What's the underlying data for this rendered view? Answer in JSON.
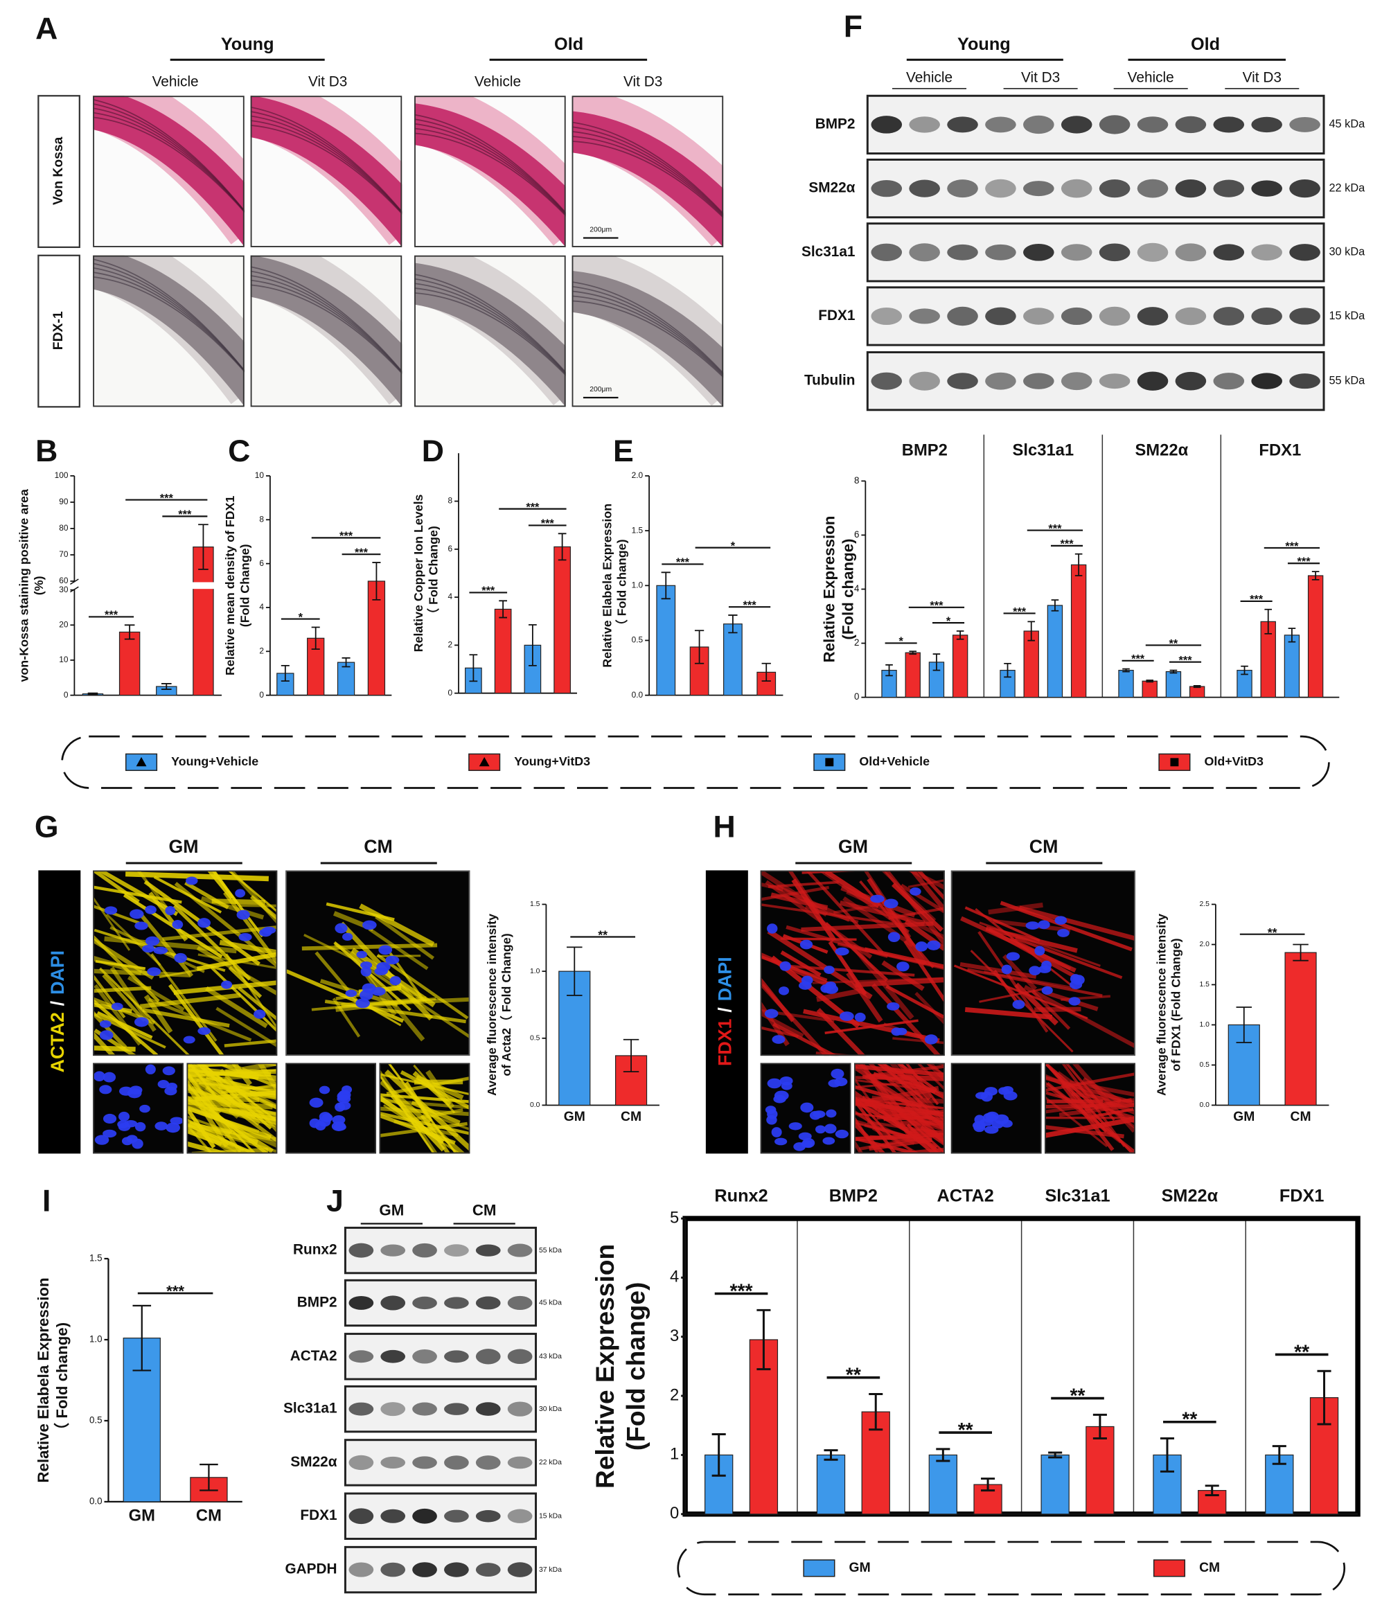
{
  "panel_letters": [
    "A",
    "B",
    "C",
    "D",
    "E",
    "F",
    "G",
    "H",
    "I",
    "J"
  ],
  "panel_A": {
    "groups": [
      "Young",
      "Old"
    ],
    "conditions": [
      "Vehicle",
      "Vit D3",
      "Vehicle",
      "Vit D3"
    ],
    "rows": [
      "Von Kossa",
      "FDX-1"
    ],
    "scale_bar": "200μm"
  },
  "panel_F": {
    "groups": [
      "Young",
      "Old"
    ],
    "conditions": [
      "Vehicle",
      "Vit D3",
      "Vehicle",
      "Vit D3"
    ],
    "blots": [
      {
        "protein": "BMP2",
        "size": "45 kDa"
      },
      {
        "protein": "SM22α",
        "size": "22 kDa"
      },
      {
        "protein": "Slc31a1",
        "size": "30 kDa"
      },
      {
        "protein": "FDX1",
        "size": "15 kDa"
      },
      {
        "protein": "Tubulin",
        "size": "55 kDa"
      }
    ]
  },
  "panel_G": {
    "conditions": [
      "GM",
      "CM"
    ],
    "stain": [
      "ACTA2",
      "/",
      "DAPI"
    ]
  },
  "panel_H": {
    "conditions": [
      "GM",
      "CM"
    ],
    "stain": [
      "FDX1",
      "/",
      "DAPI"
    ]
  },
  "panel_J": {
    "conditions": [
      "GM",
      "CM"
    ],
    "blots": [
      {
        "protein": "Runx2",
        "size": "55 kDa"
      },
      {
        "protein": "BMP2",
        "size": "45 kDa"
      },
      {
        "protein": "ACTA2",
        "size": "43 kDa"
      },
      {
        "protein": "Slc31a1",
        "size": "30 kDa"
      },
      {
        "protein": "SM22α",
        "size": "22 kDa"
      },
      {
        "protein": "FDX1",
        "size": "15 kDa"
      },
      {
        "protein": "GAPDH",
        "size": "37 kDa"
      }
    ]
  },
  "chart_data": [
    {
      "type": "bar",
      "ylabel": [
        "von-Kossa staining positive area",
        "(%)"
      ],
      "values": [
        0.4,
        18,
        2.5,
        73
      ],
      "errors": [
        0.2,
        2,
        0.8,
        8.5
      ],
      "colors": [
        "#3d98ea",
        "#ee2b2b",
        "#3d98ea",
        "#ee2b2b"
      ],
      "ylim": [
        0,
        100
      ],
      "ybreak": [
        30,
        60
      ],
      "yticks": [
        0,
        10,
        20,
        30,
        60,
        70,
        80,
        90,
        100
      ],
      "comparisons": [
        {
          "between": [
            0,
            1
          ],
          "label": "***"
        },
        {
          "between": [
            2,
            3
          ],
          "label": "***"
        },
        {
          "between": [
            1,
            3
          ],
          "label": "***"
        }
      ]
    },
    {
      "type": "bar",
      "ylabel": [
        "Relative mean density of FDX1",
        "(Fold Change)"
      ],
      "values": [
        1.0,
        2.6,
        1.5,
        5.2
      ],
      "errors": [
        0.35,
        0.5,
        0.2,
        0.85
      ],
      "colors": [
        "#3d98ea",
        "#ee2b2b",
        "#3d98ea",
        "#ee2b2b"
      ],
      "ylim": [
        0,
        10
      ],
      "yticks": [
        0,
        2,
        4,
        6,
        8,
        10
      ],
      "comparisons": [
        {
          "between": [
            0,
            1
          ],
          "label": "*"
        },
        {
          "between": [
            2,
            3
          ],
          "label": "***"
        },
        {
          "between": [
            1,
            3
          ],
          "label": "***"
        }
      ]
    },
    {
      "type": "bar",
      "ylabel": [
        "Relative Copper Ion Levels",
        "（ Fold Change)"
      ],
      "values": [
        1.05,
        3.5,
        2.0,
        6.1
      ],
      "errors": [
        0.55,
        0.35,
        0.85,
        0.55
      ],
      "colors": [
        "#3d98ea",
        "#ee2b2b",
        "#3d98ea",
        "#ee2b2b"
      ],
      "ylim": [
        0,
        10
      ],
      "yticks": [
        0,
        2,
        4,
        6,
        8
      ],
      "comparisons": [
        {
          "between": [
            0,
            1
          ],
          "label": "***"
        },
        {
          "between": [
            2,
            3
          ],
          "label": "***"
        },
        {
          "between": [
            1,
            3
          ],
          "label": "***"
        }
      ]
    },
    {
      "type": "bar",
      "ylabel": [
        "Relative  Elabela Expression",
        "（ Fold change)"
      ],
      "values": [
        1.0,
        0.44,
        0.65,
        0.21
      ],
      "errors": [
        0.12,
        0.15,
        0.08,
        0.08
      ],
      "colors": [
        "#3d98ea",
        "#ee2b2b",
        "#3d98ea",
        "#ee2b2b"
      ],
      "ylim": [
        0,
        2
      ],
      "yticks": [
        {
          "value": 0,
          "label": "0.0"
        },
        0.5,
        {
          "value": 1,
          "label": "1.0"
        },
        1.5,
        {
          "value": 2,
          "label": "2.0"
        }
      ],
      "comparisons": [
        {
          "between": [
            0,
            1
          ],
          "label": "***"
        },
        {
          "between": [
            2,
            3
          ],
          "label": "***"
        },
        {
          "between": [
            1,
            3
          ],
          "label": "*"
        }
      ]
    },
    {
      "type": "bar",
      "ylabel": [
        "Relative  Expression",
        "(Fold change)"
      ],
      "categories": [
        "BMP2",
        "Slc31a1",
        "SM22α",
        "FDX1"
      ],
      "dividers": true,
      "series": [
        {
          "name": "Young+Vehicle",
          "color": "#3d98ea",
          "marker": "triangle",
          "values": [
            1.0,
            1.0,
            1.0,
            1.0
          ],
          "errors": [
            0.2,
            0.25,
            0.05,
            0.15
          ]
        },
        {
          "name": "Young+VitD3",
          "color": "#ee2b2b",
          "marker": "triangle",
          "values": [
            1.65,
            2.45,
            0.6,
            2.8
          ],
          "errors": [
            0.05,
            0.35,
            0.03,
            0.45
          ]
        },
        {
          "name": "Old+Vehicle",
          "color": "#3d98ea",
          "marker": "square",
          "values": [
            1.3,
            3.4,
            0.95,
            2.3
          ],
          "errors": [
            0.3,
            0.2,
            0.05,
            0.25
          ]
        },
        {
          "name": "Old+VitD3",
          "color": "#ee2b2b",
          "marker": "square",
          "values": [
            2.3,
            4.9,
            0.4,
            4.5
          ],
          "errors": [
            0.15,
            0.4,
            0.03,
            0.15
          ]
        }
      ],
      "ylim": [
        0,
        8
      ],
      "yticks": [
        0,
        2,
        4,
        6,
        8
      ],
      "comparisons": [
        {
          "category": 0,
          "between": [
            0,
            1
          ],
          "label": "*"
        },
        {
          "category": 0,
          "between": [
            2,
            3
          ],
          "label": "*"
        },
        {
          "category": 0,
          "between": [
            1,
            3
          ],
          "label": "***"
        },
        {
          "category": 1,
          "between": [
            0,
            1
          ],
          "label": "***"
        },
        {
          "category": 1,
          "between": [
            2,
            3
          ],
          "label": "***"
        },
        {
          "category": 1,
          "between": [
            1,
            3
          ],
          "label": "***"
        },
        {
          "category": 2,
          "between": [
            0,
            1
          ],
          "label": "***"
        },
        {
          "category": 2,
          "between": [
            2,
            3
          ],
          "label": "***"
        },
        {
          "category": 2,
          "between": [
            1,
            3
          ],
          "label": "**"
        },
        {
          "category": 3,
          "between": [
            0,
            1
          ],
          "label": "***"
        },
        {
          "category": 3,
          "between": [
            2,
            3
          ],
          "label": "***"
        },
        {
          "category": 3,
          "between": [
            1,
            3
          ],
          "label": "***"
        }
      ]
    },
    {
      "type": "bar",
      "ylabel": [
        "Average fluorescence intensity",
        "of Acta2（ Fold Change)"
      ],
      "categories": [
        "GM",
        "CM"
      ],
      "values": [
        1.0,
        0.37
      ],
      "errors": [
        0.18,
        0.12
      ],
      "colors": [
        "#3d98ea",
        "#ee2b2b"
      ],
      "ylim": [
        0,
        1.5
      ],
      "yticks": [
        {
          "value": 0,
          "label": "0.0"
        },
        0.5,
        {
          "value": 1,
          "label": "1.0"
        },
        1.5
      ],
      "comparisons": [
        {
          "between": [
            0,
            1
          ],
          "label": "**"
        }
      ]
    },
    {
      "type": "bar",
      "ylabel": [
        "Average fluorescence intensity",
        "of FDX1 (Fold Change)"
      ],
      "categories": [
        "GM",
        "CM"
      ],
      "values": [
        1.0,
        1.9
      ],
      "errors": [
        0.22,
        0.1
      ],
      "colors": [
        "#3d98ea",
        "#ee2b2b"
      ],
      "ylim": [
        0,
        2.5
      ],
      "yticks": [
        {
          "value": 0,
          "label": "0.0"
        },
        0.5,
        {
          "value": 1,
          "label": "1.0"
        },
        1.5,
        {
          "value": 2,
          "label": "2.0"
        },
        2.5
      ],
      "comparisons": [
        {
          "between": [
            0,
            1
          ],
          "label": "**"
        }
      ]
    },
    {
      "type": "bar",
      "ylabel": [
        "Relative  Elabela Expression",
        "（ Fold change)"
      ],
      "categories": [
        "GM",
        "CM"
      ],
      "values": [
        1.01,
        0.15
      ],
      "errors": [
        0.2,
        0.08
      ],
      "colors": [
        "#3d98ea",
        "#ee2b2b"
      ],
      "ylim": [
        0,
        1.5
      ],
      "yticks": [
        {
          "value": 0,
          "label": "0.0"
        },
        0.5,
        {
          "value": 1,
          "label": "1.0"
        },
        1.5
      ],
      "comparisons": [
        {
          "between": [
            0,
            1
          ],
          "label": "***"
        }
      ]
    },
    {
      "type": "bar",
      "ylabel": [
        "Relative  Expression",
        "(Fold change)"
      ],
      "categories": [
        "Runx2",
        "BMP2",
        "ACTA2",
        "Slc31a1",
        "SM22α",
        "FDX1"
      ],
      "dividers": true,
      "frame": true,
      "series": [
        {
          "name": "GM",
          "color": "#3d98ea",
          "values": [
            1.0,
            1.0,
            1.0,
            1.0,
            1.0,
            1.0
          ],
          "errors": [
            0.35,
            0.08,
            0.1,
            0.04,
            0.28,
            0.15
          ]
        },
        {
          "name": "CM",
          "color": "#ee2b2b",
          "values": [
            2.95,
            1.73,
            0.5,
            1.48,
            0.4,
            1.97
          ],
          "errors": [
            0.5,
            0.3,
            0.1,
            0.2,
            0.08,
            0.45
          ]
        }
      ],
      "ylim": [
        0,
        5
      ],
      "yticks": [
        0,
        1,
        2,
        3,
        4,
        5
      ],
      "comparisons": [
        {
          "category": 0,
          "between": [
            0,
            1
          ],
          "label": "***"
        },
        {
          "category": 1,
          "between": [
            0,
            1
          ],
          "label": "**"
        },
        {
          "category": 2,
          "between": [
            0,
            1
          ],
          "label": "**"
        },
        {
          "category": 3,
          "between": [
            0,
            1
          ],
          "label": "**"
        },
        {
          "category": 4,
          "between": [
            0,
            1
          ],
          "label": "**"
        },
        {
          "category": 5,
          "between": [
            0,
            1
          ],
          "label": "**"
        }
      ]
    }
  ]
}
